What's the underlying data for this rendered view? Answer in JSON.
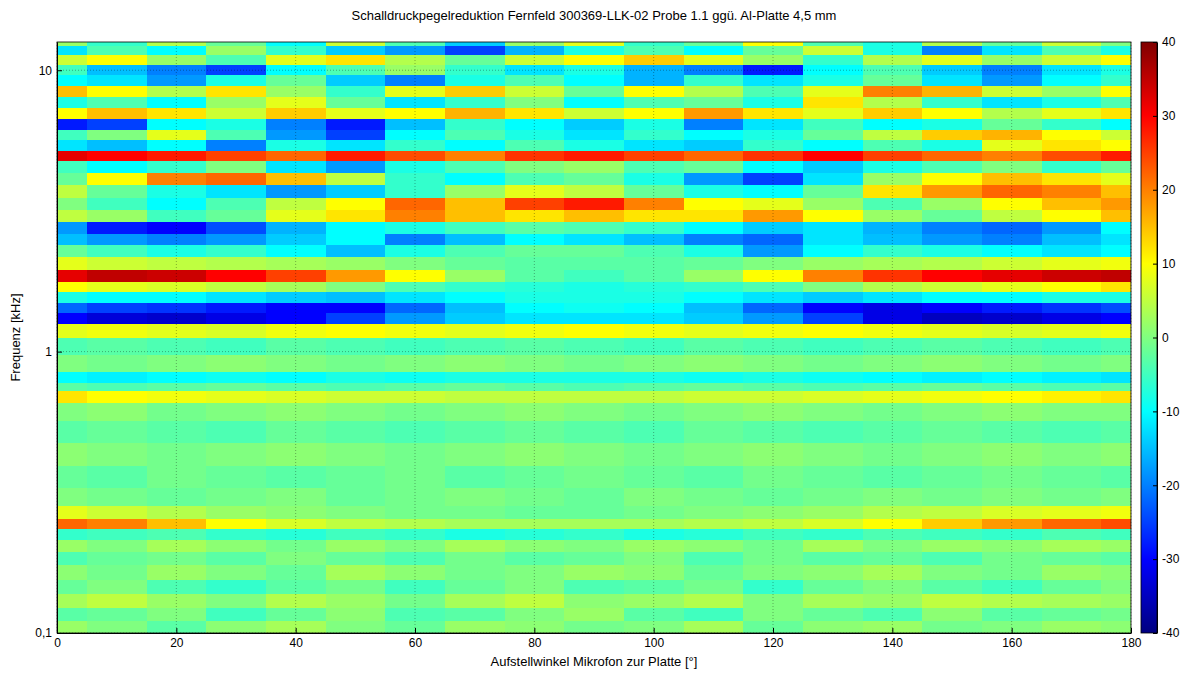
{
  "chart_data": {
    "type": "heatmap",
    "title": "Schalldruckpegelreduktion Fernfeld 300369-LLK-02 Probe 1.1 ggü. Al-Platte 4,5 mm",
    "x_label": "Aufstellwinkel Mikrofon zur Platte [°]",
    "y_label": "Frequenz [kHz]",
    "x": [
      0,
      10,
      20,
      30,
      40,
      50,
      60,
      70,
      80,
      90,
      100,
      110,
      120,
      130,
      140,
      150,
      160,
      170,
      180
    ],
    "y": [
      0.105,
      0.115,
      0.13,
      0.145,
      0.165,
      0.185,
      0.205,
      0.225,
      0.245,
      0.265,
      0.3,
      0.36,
      0.43,
      0.52,
      0.62,
      0.7,
      0.75,
      0.8,
      0.9,
      1.05,
      1.2,
      1.32,
      1.42,
      1.55,
      1.7,
      1.85,
      2.05,
      2.3,
      2.5,
      2.75,
      3.05,
      3.35,
      3.7,
      4.1,
      4.55,
      4.95,
      5.4,
      5.9,
      6.4,
      7.0,
      7.7,
      8.4,
      9.2,
      10.0,
      10.9,
      11.8,
      12.5
    ],
    "values": [
      [
        2,
        0,
        -3,
        1,
        3,
        0,
        -2,
        2,
        1,
        -1,
        0,
        3,
        -2,
        1,
        2,
        -1,
        0,
        2,
        1
      ],
      [
        -3,
        -2,
        0,
        -5,
        -2,
        1,
        -4,
        -3,
        0,
        2,
        -3,
        -5,
        0,
        -2,
        -4,
        1,
        -3,
        -2,
        -1
      ],
      [
        3,
        5,
        2,
        0,
        4,
        2,
        -1,
        3,
        5,
        1,
        2,
        4,
        0,
        3,
        2,
        5,
        4,
        3,
        2
      ],
      [
        -2,
        0,
        -4,
        -6,
        -3,
        -1,
        -5,
        -2,
        0,
        -4,
        -3,
        -1,
        -6,
        -2,
        0,
        -3,
        -5,
        -2,
        0
      ],
      [
        1,
        -1,
        2,
        0,
        -2,
        3,
        1,
        -1,
        0,
        2,
        1,
        -2,
        0,
        1,
        3,
        0,
        -1,
        2,
        1
      ],
      [
        -4,
        -2,
        -1,
        -3,
        0,
        -2,
        -4,
        -1,
        -3,
        -2,
        0,
        -4,
        -1,
        -3,
        -2,
        -4,
        -1,
        -2,
        -3
      ],
      [
        2,
        0,
        3,
        1,
        -1,
        2,
        0,
        3,
        1,
        0,
        2,
        1,
        -1,
        3,
        0,
        2,
        1,
        3,
        2
      ],
      [
        -6,
        -5,
        -4,
        -6,
        -7,
        -5,
        -6,
        -8,
        -7,
        -6,
        -8,
        -7,
        -5,
        -6,
        -4,
        -5,
        -6,
        -4,
        -5
      ],
      [
        22,
        20,
        15,
        10,
        7,
        5,
        4,
        3,
        3,
        3,
        3,
        4,
        5,
        7,
        10,
        14,
        18,
        22,
        24
      ],
      [
        8,
        6,
        4,
        2,
        1,
        0,
        -1,
        -1,
        -2,
        -2,
        -1,
        0,
        1,
        2,
        4,
        5,
        7,
        8,
        9
      ],
      [
        0,
        -1,
        -2,
        -1,
        0,
        -2,
        -1,
        0,
        -1,
        -2,
        0,
        -1,
        -2,
        -1,
        0,
        -1,
        0,
        -1,
        0
      ],
      [
        -2,
        -3,
        -1,
        -2,
        -3,
        -2,
        -1,
        -3,
        -2,
        -1,
        -2,
        -3,
        -1,
        -2,
        -3,
        -2,
        -1,
        -2,
        -3
      ],
      [
        1,
        0,
        -1,
        0,
        1,
        0,
        -1,
        0,
        1,
        0,
        -1,
        0,
        1,
        0,
        -1,
        0,
        1,
        0,
        1
      ],
      [
        -3,
        -2,
        -3,
        -4,
        -2,
        -3,
        -4,
        -3,
        -2,
        -3,
        -4,
        -2,
        -3,
        -4,
        -3,
        -2,
        -3,
        -4,
        -3
      ],
      [
        0,
        1,
        -1,
        0,
        1,
        0,
        -1,
        0,
        1,
        0,
        -1,
        0,
        1,
        0,
        -1,
        0,
        1,
        0,
        0
      ],
      [
        12,
        10,
        9,
        8,
        7,
        6,
        6,
        5,
        5,
        5,
        5,
        6,
        6,
        7,
        8,
        9,
        10,
        11,
        12
      ],
      [
        -3,
        -4,
        -3,
        -2,
        -3,
        -4,
        -3,
        -2,
        -3,
        -4,
        -3,
        -2,
        -3,
        -4,
        -3,
        -2,
        -3,
        -4,
        -3
      ],
      [
        -10,
        -11,
        -10,
        -9,
        -10,
        -8,
        -9,
        -8,
        -8,
        -8,
        -8,
        -9,
        -8,
        -9,
        -10,
        -11,
        -10,
        -11,
        -12
      ],
      [
        0,
        -1,
        0,
        1,
        0,
        -1,
        0,
        1,
        0,
        -1,
        0,
        1,
        0,
        -1,
        0,
        1,
        0,
        -1,
        0
      ],
      [
        -4,
        -3,
        -4,
        -5,
        -3,
        -4,
        -5,
        -4,
        -3,
        -4,
        -5,
        -3,
        -4,
        -5,
        -4,
        -3,
        -4,
        -5,
        -4
      ],
      [
        8,
        9,
        8,
        7,
        9,
        10,
        9,
        8,
        9,
        10,
        9,
        8,
        9,
        10,
        9,
        8,
        7,
        8,
        9
      ],
      [
        -30,
        -33,
        -34,
        -32,
        -30,
        -25,
        -18,
        -14,
        -12,
        -12,
        -12,
        -14,
        -18,
        -25,
        -32,
        -35,
        -34,
        -32,
        -30
      ],
      [
        -22,
        -25,
        -26,
        -28,
        -30,
        -30,
        -22,
        -15,
        -10,
        -9,
        -10,
        -15,
        -22,
        -30,
        -32,
        -30,
        -28,
        -26,
        -24
      ],
      [
        -8,
        -10,
        -10,
        -12,
        -14,
        -15,
        -12,
        -10,
        -8,
        -8,
        -8,
        -10,
        -12,
        -14,
        -12,
        -10,
        -10,
        -8,
        -8
      ],
      [
        10,
        8,
        7,
        5,
        3,
        0,
        -4,
        -6,
        -7,
        -8,
        -7,
        -6,
        -4,
        0,
        4,
        6,
        8,
        10,
        12
      ],
      [
        32,
        35,
        34,
        30,
        25,
        18,
        10,
        2,
        -3,
        -5,
        -3,
        2,
        10,
        20,
        26,
        30,
        32,
        34,
        35
      ],
      [
        8,
        6,
        5,
        4,
        3,
        2,
        0,
        -2,
        -3,
        -3,
        -3,
        -2,
        0,
        2,
        3,
        4,
        6,
        8,
        9
      ],
      [
        -2,
        -5,
        -8,
        -6,
        -10,
        -15,
        -8,
        -4,
        -2,
        -2,
        -4,
        -8,
        -18,
        -10,
        -6,
        -8,
        -10,
        -12,
        -10
      ],
      [
        -15,
        -18,
        -20,
        -18,
        -14,
        -10,
        -20,
        -15,
        -10,
        -12,
        -15,
        -20,
        -22,
        -12,
        -15,
        -18,
        -20,
        -15,
        -12
      ],
      [
        -18,
        -28,
        -30,
        -24,
        -16,
        -10,
        -8,
        -5,
        -3,
        -4,
        -6,
        -10,
        -14,
        -12,
        -16,
        -20,
        -22,
        -18,
        -10
      ],
      [
        5,
        2,
        -5,
        -2,
        8,
        12,
        20,
        15,
        12,
        15,
        12,
        12,
        18,
        10,
        2,
        -2,
        5,
        10,
        15
      ],
      [
        0,
        -5,
        -10,
        -4,
        5,
        10,
        22,
        15,
        25,
        28,
        20,
        10,
        8,
        2,
        -4,
        2,
        10,
        15,
        18
      ],
      [
        5,
        -2,
        -8,
        -12,
        -18,
        -14,
        -6,
        2,
        8,
        5,
        -2,
        -8,
        -10,
        -2,
        12,
        18,
        22,
        20,
        15
      ],
      [
        -2,
        10,
        20,
        22,
        15,
        5,
        -6,
        -10,
        -4,
        -2,
        -8,
        -18,
        -25,
        -12,
        2,
        10,
        15,
        12,
        8
      ],
      [
        -5,
        -10,
        -6,
        0,
        -12,
        -18,
        -8,
        -4,
        0,
        2,
        -4,
        -2,
        -10,
        -14,
        -8,
        -4,
        0,
        -6,
        -2
      ],
      [
        32,
        30,
        28,
        25,
        22,
        28,
        24,
        20,
        26,
        28,
        25,
        22,
        26,
        30,
        25,
        22,
        20,
        24,
        28
      ],
      [
        -12,
        -15,
        -10,
        -20,
        -8,
        -12,
        -6,
        -10,
        -4,
        -8,
        -12,
        -14,
        -6,
        -10,
        -4,
        -8,
        8,
        12,
        10
      ],
      [
        -5,
        0,
        8,
        -4,
        -18,
        -25,
        -10,
        -4,
        -8,
        -12,
        -6,
        -10,
        -8,
        -2,
        5,
        14,
        16,
        10,
        6
      ],
      [
        -28,
        -25,
        -10,
        -8,
        -20,
        -28,
        -15,
        -6,
        -10,
        -14,
        -8,
        -20,
        -12,
        -5,
        -10,
        -8,
        -2,
        -6,
        -10
      ],
      [
        10,
        15,
        12,
        6,
        14,
        8,
        10,
        16,
        12,
        6,
        10,
        18,
        12,
        8,
        14,
        10,
        4,
        8,
        12
      ],
      [
        -8,
        -4,
        -10,
        2,
        8,
        -2,
        -12,
        -6,
        0,
        -10,
        -4,
        -2,
        -8,
        12,
        4,
        -6,
        -12,
        -8,
        -4
      ],
      [
        15,
        10,
        4,
        12,
        2,
        -6,
        8,
        14,
        6,
        -2,
        10,
        4,
        -4,
        8,
        20,
        16,
        6,
        2,
        10
      ],
      [
        -10,
        -12,
        -18,
        -8,
        -2,
        -14,
        -20,
        -8,
        -4,
        -10,
        -16,
        -6,
        -12,
        -8,
        -2,
        -12,
        -18,
        -10,
        -6
      ],
      [
        -5,
        -15,
        -20,
        -25,
        -10,
        -4,
        2,
        -6,
        -12,
        -8,
        -16,
        -20,
        -28,
        -10,
        -4,
        -14,
        -20,
        -12,
        -8
      ],
      [
        6,
        10,
        2,
        -4,
        8,
        12,
        4,
        -2,
        6,
        10,
        14,
        8,
        2,
        -6,
        4,
        8,
        2,
        6,
        10
      ],
      [
        -12,
        -4,
        -10,
        2,
        -6,
        -14,
        -18,
        -25,
        -16,
        -8,
        -4,
        -10,
        -2,
        6,
        -8,
        -20,
        -12,
        -4,
        -8
      ],
      [
        2,
        -6,
        4,
        -2,
        -10,
        6,
        -4,
        -14,
        2,
        8,
        -6,
        -2,
        10,
        -4,
        -8,
        4,
        -2,
        6,
        0
      ]
    ],
    "xlim": [
      0,
      180
    ],
    "ylim": [
      0.1,
      12.6
    ],
    "xticks": [
      0,
      20,
      40,
      60,
      80,
      100,
      120,
      140,
      160,
      180
    ],
    "yticks": [
      {
        "value": 0.1,
        "label": "0,1"
      },
      1,
      10
    ],
    "log": "y",
    "grid": true,
    "zlim": [
      -40,
      40
    ],
    "zticks": [
      -40,
      -30,
      -20,
      -10,
      0,
      10,
      20,
      30,
      40
    ]
  }
}
